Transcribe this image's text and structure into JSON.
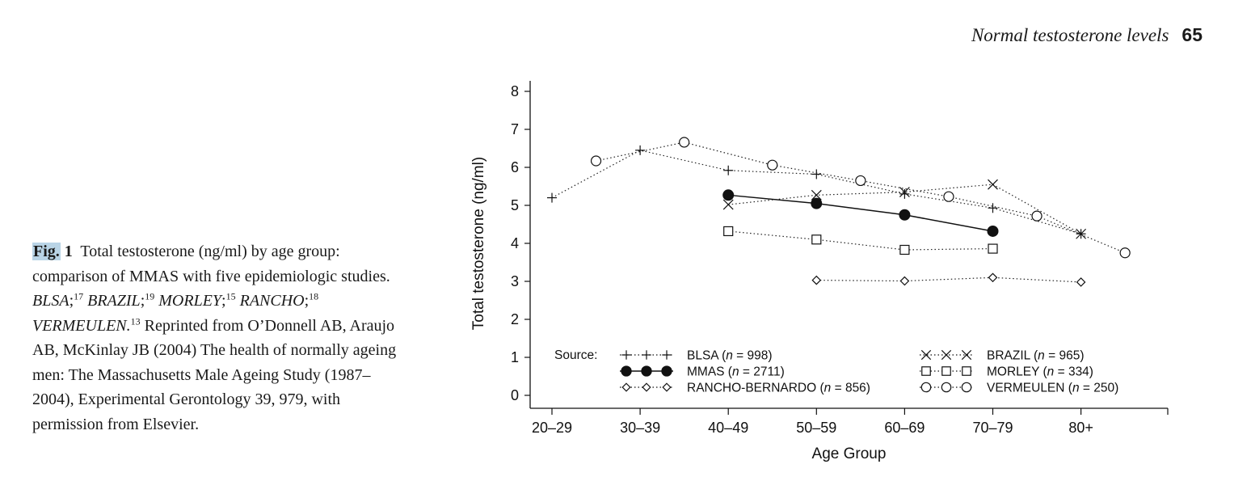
{
  "header": {
    "title": "Normal testosterone levels",
    "page_number": "65"
  },
  "caption": {
    "fig_label": "Fig.",
    "fig_number": "1",
    "text1": "Total testosterone (ng/ml) by age group: comparison of MMAS with five epidemiologic studies.",
    "study1": "BLSA",
    "ref1": "17",
    "study2": "BRAZIL",
    "ref2": "19",
    "study3": "MORLEY",
    "ref3": "15",
    "study4": "RANCHO",
    "ref4": "18",
    "study5": "VERMEULEN.",
    "ref5": "13",
    "text2": "Reprinted from O’Donnell AB, Araujo AB, McKinlay JB (2004) The health of normally ageing men: The Massachusetts Male Ageing Study (1987–2004), Experimental Gerontology 39, 979, with permission from Elsevier."
  },
  "chart_data": {
    "type": "line",
    "xlabel": "Age Group",
    "ylabel": "Total testosterone (ng/ml)",
    "categories": [
      "20–29",
      "30–39",
      "40–49",
      "50–59",
      "60–69",
      "70–79",
      "80+"
    ],
    "xlim": [
      -0.3,
      7.0
    ],
    "ylim": [
      0,
      8
    ],
    "yticks": [
      0,
      1,
      2,
      3,
      4,
      5,
      6,
      7,
      8
    ],
    "legend_title": "Source:",
    "legend_position": "bottom",
    "series": [
      {
        "name": "BLSA",
        "n": "998",
        "marker": "plus",
        "line": "dotted",
        "color": "#222222",
        "points": [
          [
            0,
            5.2
          ],
          [
            1,
            6.45
          ],
          [
            2,
            5.92
          ],
          [
            3,
            5.82
          ],
          [
            4,
            5.3
          ],
          [
            5,
            4.93
          ],
          [
            6,
            4.25
          ]
        ]
      },
      {
        "name": "MMAS",
        "n": "2711",
        "marker": "filled-circle",
        "line": "solid",
        "color": "#111111",
        "points": [
          [
            2,
            5.27
          ],
          [
            3,
            5.05
          ],
          [
            4,
            4.75
          ],
          [
            5,
            4.32
          ]
        ]
      },
      {
        "name": "RANCHO-BERNARDO",
        "n": "856",
        "marker": "diamond",
        "line": "dotted",
        "color": "#222222",
        "points": [
          [
            3,
            3.03
          ],
          [
            4,
            3.01
          ],
          [
            5,
            3.1
          ],
          [
            6,
            2.98
          ]
        ]
      },
      {
        "name": "BRAZIL",
        "n": "965",
        "marker": "x",
        "line": "dotted",
        "color": "#222222",
        "points": [
          [
            2,
            5.02
          ],
          [
            3,
            5.27
          ],
          [
            4,
            5.35
          ],
          [
            5,
            5.55
          ],
          [
            6,
            4.25
          ]
        ]
      },
      {
        "name": "MORLEY",
        "n": "334",
        "marker": "square",
        "line": "dotted",
        "color": "#222222",
        "points": [
          [
            2,
            4.32
          ],
          [
            3,
            4.1
          ],
          [
            4,
            3.83
          ],
          [
            5,
            3.86
          ]
        ]
      },
      {
        "name": "VERMEULEN",
        "n": "250",
        "marker": "circle",
        "line": "dotted",
        "color": "#222222",
        "points": [
          [
            0.5,
            6.17
          ],
          [
            1.5,
            6.66
          ],
          [
            2.5,
            6.06
          ],
          [
            3.5,
            5.65
          ],
          [
            4.5,
            5.23
          ],
          [
            5.5,
            4.72
          ],
          [
            6.5,
            3.75
          ]
        ]
      }
    ]
  }
}
